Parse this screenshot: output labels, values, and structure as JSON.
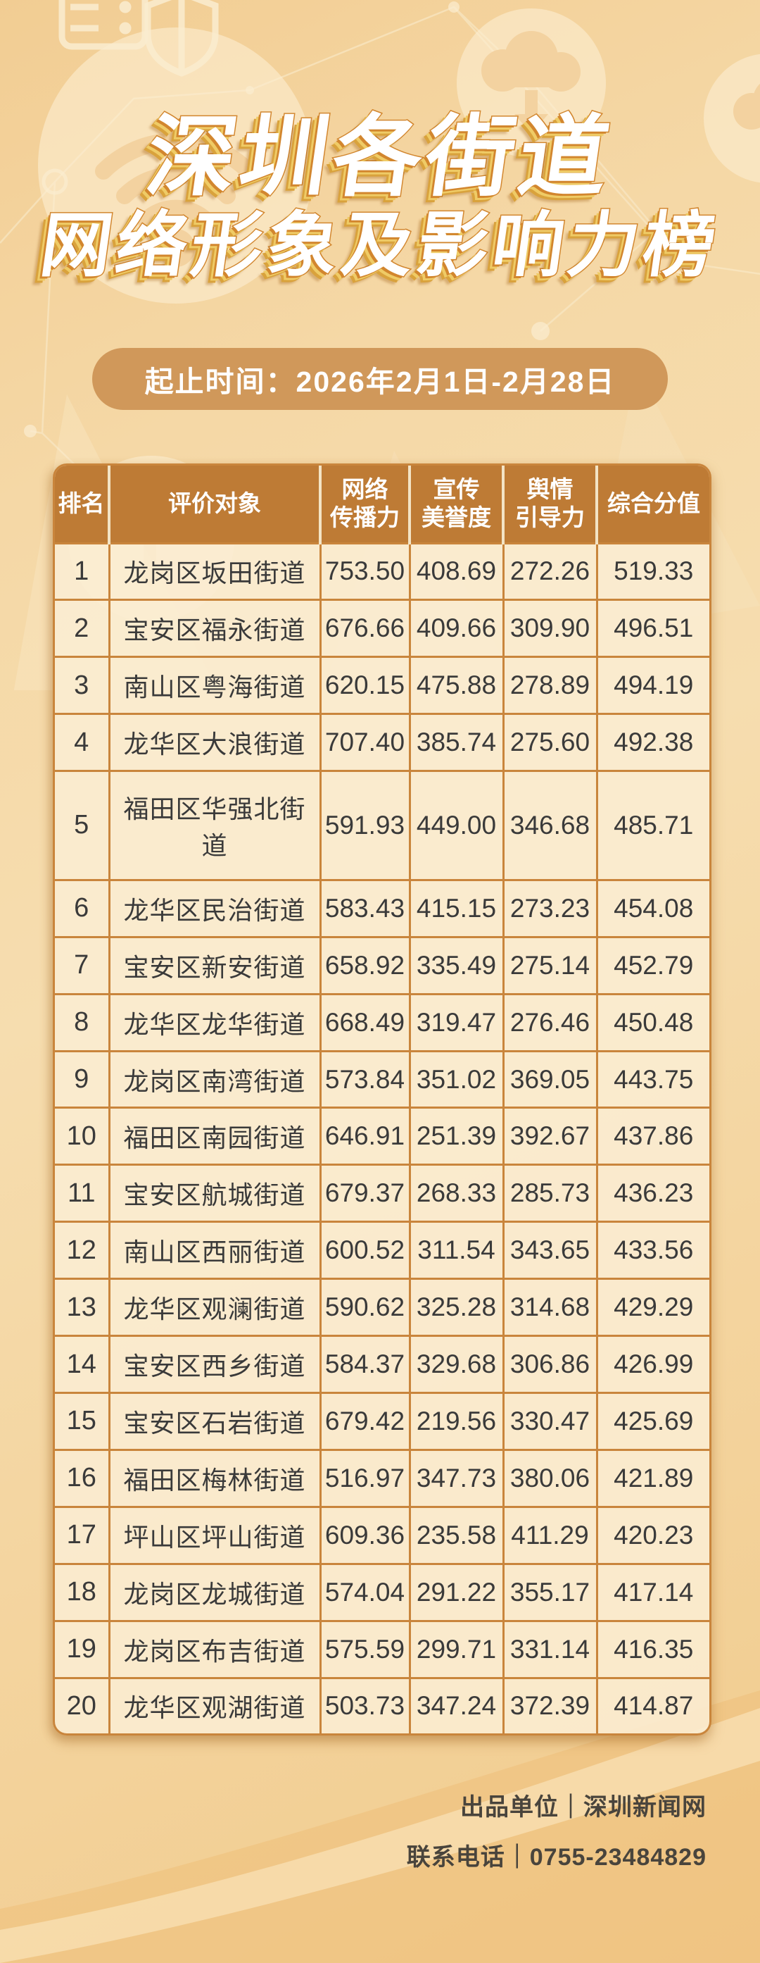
{
  "title": {
    "line1": "深圳各街道",
    "line2": "网络形象及影响力榜"
  },
  "banner": {
    "text": "起止时间：2026年2月1日-2月28日"
  },
  "table": {
    "headers": [
      {
        "lines": [
          "排名"
        ]
      },
      {
        "lines": [
          "评价对象"
        ]
      },
      {
        "lines": [
          "网络",
          "传播力"
        ]
      },
      {
        "lines": [
          "宣传",
          "美誉度"
        ]
      },
      {
        "lines": [
          "舆情",
          "引导力"
        ]
      },
      {
        "lines": [
          "综合分值"
        ]
      }
    ]
  },
  "chart_data": {
    "type": "table",
    "title": "深圳各街道网络形象及影响力榜",
    "period": "2026年2月1日-2月28日",
    "columns": [
      "排名",
      "评价对象",
      "网络传播力",
      "宣传美誉度",
      "舆情引导力",
      "综合分值"
    ],
    "rows": [
      [
        "1",
        "龙岗区坂田街道",
        "753.50",
        "408.69",
        "272.26",
        "519.33"
      ],
      [
        "2",
        "宝安区福永街道",
        "676.66",
        "409.66",
        "309.90",
        "496.51"
      ],
      [
        "3",
        "南山区粤海街道",
        "620.15",
        "475.88",
        "278.89",
        "494.19"
      ],
      [
        "4",
        "龙华区大浪街道",
        "707.40",
        "385.74",
        "275.60",
        "492.38"
      ],
      [
        "5",
        "福田区华强北街道",
        "591.93",
        "449.00",
        "346.68",
        "485.71"
      ],
      [
        "6",
        "龙华区民治街道",
        "583.43",
        "415.15",
        "273.23",
        "454.08"
      ],
      [
        "7",
        "宝安区新安街道",
        "658.92",
        "335.49",
        "275.14",
        "452.79"
      ],
      [
        "8",
        "龙华区龙华街道",
        "668.49",
        "319.47",
        "276.46",
        "450.48"
      ],
      [
        "9",
        "龙岗区南湾街道",
        "573.84",
        "351.02",
        "369.05",
        "443.75"
      ],
      [
        "10",
        "福田区南园街道",
        "646.91",
        "251.39",
        "392.67",
        "437.86"
      ],
      [
        "11",
        "宝安区航城街道",
        "679.37",
        "268.33",
        "285.73",
        "436.23"
      ],
      [
        "12",
        "南山区西丽街道",
        "600.52",
        "311.54",
        "343.65",
        "433.56"
      ],
      [
        "13",
        "龙华区观澜街道",
        "590.62",
        "325.28",
        "314.68",
        "429.29"
      ],
      [
        "14",
        "宝安区西乡街道",
        "584.37",
        "329.68",
        "306.86",
        "426.99"
      ],
      [
        "15",
        "宝安区石岩街道",
        "679.42",
        "219.56",
        "330.47",
        "425.69"
      ],
      [
        "16",
        "福田区梅林街道",
        "516.97",
        "347.73",
        "380.06",
        "421.89"
      ],
      [
        "17",
        "坪山区坪山街道",
        "609.36",
        "235.58",
        "411.29",
        "420.23"
      ],
      [
        "18",
        "龙岗区龙城街道",
        "574.04",
        "291.22",
        "355.17",
        "417.14"
      ],
      [
        "19",
        "龙岗区布吉街道",
        "575.59",
        "299.71",
        "331.14",
        "416.35"
      ],
      [
        "20",
        "龙华区观湖街道",
        "503.73",
        "347.24",
        "372.39",
        "414.87"
      ]
    ]
  },
  "footer": {
    "line1": "出品单位｜深圳新闻网",
    "line2": "联系电话｜0755-23484829"
  },
  "colors": {
    "page_bg_top": "#F2CD93",
    "page_bg_mid": "#F6DDAF",
    "page_bg_bottom": "#F1CB8D",
    "banner_bg": "#D0985A",
    "header_bg": "#BE7B35",
    "cell_bg": "#FAEDD3",
    "grid_border": "#C9853C",
    "header_divider": "#F3E4C5",
    "title_fill": "#FFFFFF",
    "title_outline": "#D2862E",
    "title_extrude": "#EFCB66",
    "body_text": "#3A3A3A",
    "footer_text": "#49443C"
  }
}
